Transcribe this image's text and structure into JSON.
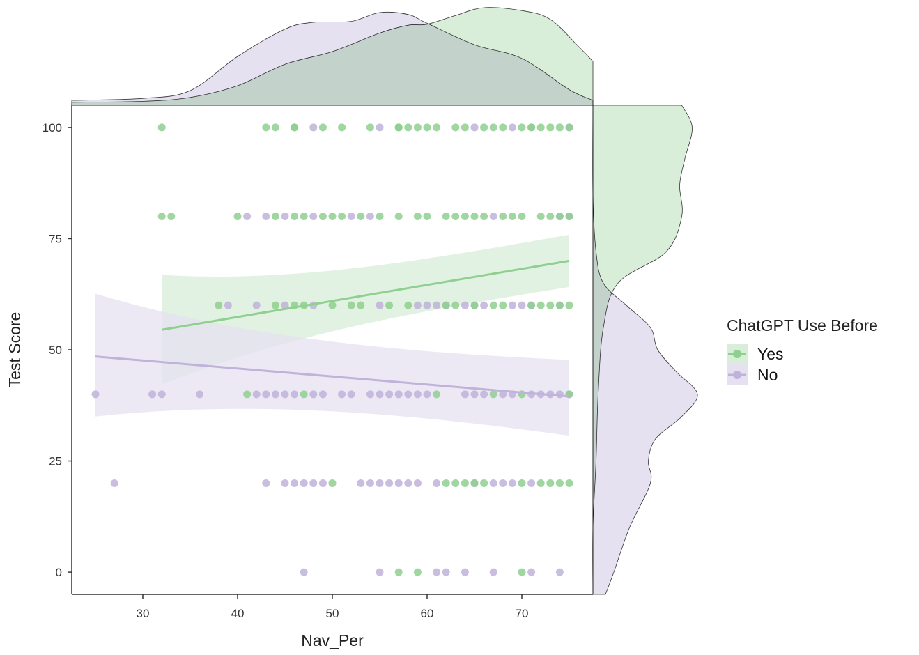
{
  "chart_data": {
    "type": "scatter",
    "xlabel": "Nav_Per",
    "ylabel": "Test Score",
    "xlim": [
      22.5,
      77.5
    ],
    "ylim": [
      -5,
      105
    ],
    "x_ticks": [
      30,
      40,
      50,
      60,
      70
    ],
    "y_ticks": [
      0,
      25,
      50,
      75,
      100
    ],
    "grid": false,
    "legend": {
      "title": "ChatGPT Use Before",
      "position": "right"
    },
    "series": [
      {
        "name": "Yes",
        "color": "#8fcf8f",
        "fill": "#d8eed8",
        "points": [
          [
            32,
            100
          ],
          [
            43,
            100
          ],
          [
            44,
            100
          ],
          [
            46,
            100
          ],
          [
            46,
            100
          ],
          [
            49,
            100
          ],
          [
            51,
            100
          ],
          [
            54,
            100
          ],
          [
            57,
            100
          ],
          [
            57,
            100
          ],
          [
            58,
            100
          ],
          [
            59,
            100
          ],
          [
            60,
            100
          ],
          [
            61,
            100
          ],
          [
            63,
            100
          ],
          [
            64,
            100
          ],
          [
            66,
            100
          ],
          [
            67,
            100
          ],
          [
            68,
            100
          ],
          [
            70,
            100
          ],
          [
            71,
            100
          ],
          [
            71,
            100
          ],
          [
            72,
            100
          ],
          [
            73,
            100
          ],
          [
            74,
            100
          ],
          [
            75,
            100
          ],
          [
            32,
            80
          ],
          [
            33,
            80
          ],
          [
            40,
            80
          ],
          [
            44,
            80
          ],
          [
            46,
            80
          ],
          [
            47,
            80
          ],
          [
            49,
            80
          ],
          [
            50,
            80
          ],
          [
            51,
            80
          ],
          [
            53,
            80
          ],
          [
            55,
            80
          ],
          [
            57,
            80
          ],
          [
            59,
            80
          ],
          [
            60,
            80
          ],
          [
            62,
            80
          ],
          [
            63,
            80
          ],
          [
            64,
            80
          ],
          [
            65,
            80
          ],
          [
            66,
            80
          ],
          [
            68,
            80
          ],
          [
            69,
            80
          ],
          [
            70,
            80
          ],
          [
            72,
            80
          ],
          [
            73,
            80
          ],
          [
            74,
            80
          ],
          [
            75,
            80
          ],
          [
            38,
            60
          ],
          [
            44,
            60
          ],
          [
            46,
            60
          ],
          [
            47,
            60
          ],
          [
            50,
            60
          ],
          [
            52,
            60
          ],
          [
            53,
            60
          ],
          [
            56,
            60
          ],
          [
            58,
            60
          ],
          [
            62,
            60
          ],
          [
            63,
            60
          ],
          [
            65,
            60
          ],
          [
            67,
            60
          ],
          [
            68,
            60
          ],
          [
            71,
            60
          ],
          [
            72,
            60
          ],
          [
            73,
            60
          ],
          [
            74,
            60
          ],
          [
            75,
            60
          ],
          [
            41,
            40
          ],
          [
            47,
            40
          ],
          [
            61,
            40
          ],
          [
            67,
            40
          ],
          [
            70,
            40
          ],
          [
            75,
            40
          ],
          [
            50,
            20
          ],
          [
            62,
            20
          ],
          [
            63,
            20
          ],
          [
            64,
            20
          ],
          [
            65,
            20
          ],
          [
            66,
            20
          ],
          [
            70,
            20
          ],
          [
            72,
            20
          ],
          [
            73,
            20
          ],
          [
            74,
            20
          ],
          [
            75,
            20
          ],
          [
            57,
            0
          ],
          [
            59,
            0
          ],
          [
            70,
            0
          ]
        ],
        "regression": {
          "x": [
            32,
            75
          ],
          "y": [
            54.5,
            70.0
          ],
          "ci_lower": [
            44,
            65
          ],
          "ci_upper": [
            65,
            75
          ]
        },
        "marginal_x_density": [
          [
            22.5,
            0.03
          ],
          [
            30,
            0.04
          ],
          [
            35,
            0.08
          ],
          [
            40,
            0.2
          ],
          [
            45,
            0.42
          ],
          [
            50,
            0.55
          ],
          [
            55,
            0.74
          ],
          [
            58,
            0.82
          ],
          [
            60,
            0.83
          ],
          [
            63,
            0.92
          ],
          [
            66,
            1.0
          ],
          [
            70,
            0.97
          ],
          [
            73,
            0.88
          ],
          [
            76,
            0.6
          ],
          [
            77.5,
            0.45
          ]
        ],
        "marginal_y_density": [
          [
            -5,
            0
          ],
          [
            10,
            0
          ],
          [
            25,
            0.03
          ],
          [
            40,
            0.05
          ],
          [
            55,
            0.1
          ],
          [
            65,
            0.24
          ],
          [
            72,
            0.7
          ],
          [
            80,
            0.85
          ],
          [
            87,
            0.83
          ],
          [
            93,
            0.88
          ],
          [
            100,
            0.95
          ],
          [
            105,
            0.85
          ]
        ]
      },
      {
        "name": "No",
        "color": "#c0b3da",
        "fill": "#e6e1f0",
        "points": [
          [
            48,
            100
          ],
          [
            55,
            100
          ],
          [
            65,
            100
          ],
          [
            69,
            100
          ],
          [
            75,
            100
          ],
          [
            41,
            80
          ],
          [
            43,
            80
          ],
          [
            45,
            80
          ],
          [
            48,
            80
          ],
          [
            52,
            80
          ],
          [
            54,
            80
          ],
          [
            67,
            80
          ],
          [
            74,
            80
          ],
          [
            75,
            80
          ],
          [
            39,
            60
          ],
          [
            42,
            60
          ],
          [
            45,
            60
          ],
          [
            48,
            60
          ],
          [
            55,
            60
          ],
          [
            59,
            60
          ],
          [
            60,
            60
          ],
          [
            61,
            60
          ],
          [
            62,
            60
          ],
          [
            64,
            60
          ],
          [
            65,
            60
          ],
          [
            66,
            60
          ],
          [
            69,
            60
          ],
          [
            70,
            60
          ],
          [
            71,
            60
          ],
          [
            74,
            60
          ],
          [
            25,
            40
          ],
          [
            31,
            40
          ],
          [
            32,
            40
          ],
          [
            36,
            40
          ],
          [
            42,
            40
          ],
          [
            43,
            40
          ],
          [
            44,
            40
          ],
          [
            45,
            40
          ],
          [
            46,
            40
          ],
          [
            48,
            40
          ],
          [
            49,
            40
          ],
          [
            51,
            40
          ],
          [
            52,
            40
          ],
          [
            54,
            40
          ],
          [
            55,
            40
          ],
          [
            56,
            40
          ],
          [
            57,
            40
          ],
          [
            58,
            40
          ],
          [
            59,
            40
          ],
          [
            60,
            40
          ],
          [
            64,
            40
          ],
          [
            65,
            40
          ],
          [
            66,
            40
          ],
          [
            68,
            40
          ],
          [
            69,
            40
          ],
          [
            71,
            40
          ],
          [
            72,
            40
          ],
          [
            73,
            40
          ],
          [
            74,
            40
          ],
          [
            75,
            40
          ],
          [
            27,
            20
          ],
          [
            43,
            20
          ],
          [
            45,
            20
          ],
          [
            46,
            20
          ],
          [
            47,
            20
          ],
          [
            48,
            20
          ],
          [
            49,
            20
          ],
          [
            53,
            20
          ],
          [
            54,
            20
          ],
          [
            55,
            20
          ],
          [
            56,
            20
          ],
          [
            57,
            20
          ],
          [
            58,
            20
          ],
          [
            59,
            20
          ],
          [
            61,
            20
          ],
          [
            65,
            20
          ],
          [
            67,
            20
          ],
          [
            68,
            20
          ],
          [
            69,
            20
          ],
          [
            71,
            20
          ],
          [
            47,
            0
          ],
          [
            55,
            0
          ],
          [
            61,
            0
          ],
          [
            62,
            0
          ],
          [
            64,
            0
          ],
          [
            67,
            0
          ],
          [
            71,
            0
          ],
          [
            74,
            0
          ]
        ],
        "regression": {
          "x": [
            25,
            75
          ],
          "y": [
            48.5,
            39.5
          ],
          "ci_lower": [
            37,
            32
          ],
          "ci_upper": [
            60.5,
            46.5
          ]
        },
        "marginal_x_density": [
          [
            22.5,
            0.05
          ],
          [
            30,
            0.07
          ],
          [
            35,
            0.15
          ],
          [
            40,
            0.5
          ],
          [
            45,
            0.78
          ],
          [
            48,
            0.85
          ],
          [
            52,
            0.86
          ],
          [
            55,
            0.95
          ],
          [
            58,
            0.93
          ],
          [
            60,
            0.84
          ],
          [
            65,
            0.62
          ],
          [
            70,
            0.48
          ],
          [
            75,
            0.16
          ],
          [
            77.5,
            0.05
          ]
        ],
        "marginal_y_density": [
          [
            -5,
            0.12
          ],
          [
            0,
            0.2
          ],
          [
            10,
            0.35
          ],
          [
            20,
            0.55
          ],
          [
            25,
            0.53
          ],
          [
            30,
            0.6
          ],
          [
            35,
            0.85
          ],
          [
            40,
            1.0
          ],
          [
            45,
            0.8
          ],
          [
            50,
            0.62
          ],
          [
            55,
            0.55
          ],
          [
            60,
            0.32
          ],
          [
            65,
            0.1
          ],
          [
            72,
            0.03
          ],
          [
            85,
            0
          ],
          [
            105,
            0
          ]
        ]
      }
    ]
  }
}
